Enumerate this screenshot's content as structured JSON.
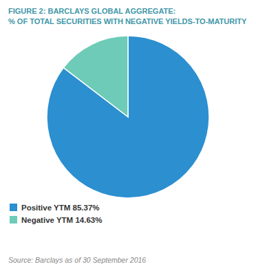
{
  "chart_data": {
    "type": "pie",
    "title": "FIGURE 2: BARCLAYS GLOBAL AGGREGATE:",
    "subtitle": "% OF TOTAL SECURITIES WITH NEGATIVE YIELDS-TO-MATURITY",
    "categories": [
      "Positive YTM 85.37%",
      "Negative YTM 14.63%"
    ],
    "values": [
      85.37,
      14.63
    ],
    "colors": [
      "#2B8FD0",
      "#6DCBB8"
    ],
    "legend": "bottom",
    "annotations": [
      "Source: Barclays as of 30 September 2016"
    ]
  }
}
